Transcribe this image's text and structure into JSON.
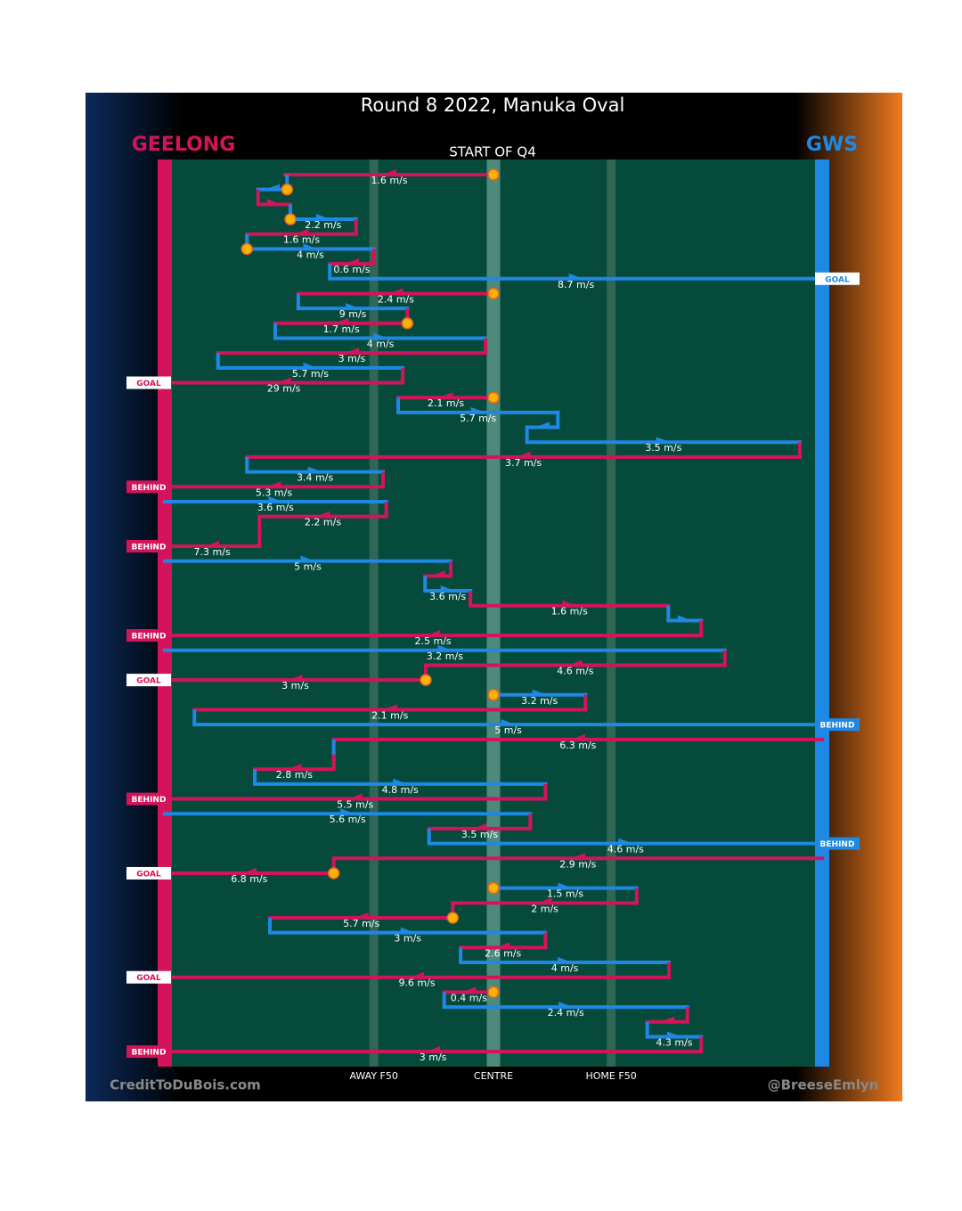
{
  "title": "Round 8 2022, Manuka Oval",
  "subtitle": "START OF Q4",
  "teams": [
    {
      "name": "GEELONG",
      "color": "#d4145a"
    },
    {
      "name": "GWS",
      "color": "#1e88e5"
    }
  ],
  "field_marks": [
    {
      "label": "AWAY F50",
      "at": 31.8
    },
    {
      "label": "CENTRE",
      "at": 50
    },
    {
      "label": "HOME F50",
      "at": 67.9
    }
  ],
  "credits": [
    "CreditToDuBois.com",
    "@BreeseEmlyn"
  ],
  "rows": [
    {
      "team": "GEELONG",
      "from": 50,
      "to": 18.3,
      "speed": "1.6 m/s",
      "dot": true
    },
    {
      "team": "GWS",
      "from": 18.6,
      "to": 14.2,
      "dot": true
    },
    {
      "team": "GEELONG",
      "from": 14.2,
      "to": 19.1
    },
    {
      "team": "GWS",
      "from": 19.1,
      "to": 29.1,
      "speed": "2.2 m/s",
      "dot": true
    },
    {
      "team": "GEELONG",
      "from": 29.1,
      "to": 12.5,
      "speed": "1.6 m/s"
    },
    {
      "team": "GWS",
      "from": 12.5,
      "to": 31.8,
      "speed": "4 m/s",
      "dot": true
    },
    {
      "team": "GEELONG",
      "from": 31.8,
      "to": 25.1,
      "speed": "0.6 m/s"
    },
    {
      "team": "GWS",
      "from": 25.1,
      "to": 100,
      "speed": "8.7 m/s",
      "result": "GOAL"
    },
    {
      "team": "GEELONG",
      "from": 50,
      "to": 20.3,
      "speed": "2.4 m/s",
      "dot": true
    },
    {
      "team": "GWS",
      "from": 20.3,
      "to": 36.9,
      "speed": "9 m/s"
    },
    {
      "team": "GEELONG",
      "from": 36.9,
      "to": 16.8,
      "speed": "1.7 m/s",
      "dot": true
    },
    {
      "team": "GWS",
      "from": 16.8,
      "to": 48.8,
      "speed": "4 m/s"
    },
    {
      "team": "GEELONG",
      "from": 48.8,
      "to": 8.1,
      "speed": "3 m/s"
    },
    {
      "team": "GWS",
      "from": 8.1,
      "to": 36.2,
      "speed": "5.7 m/s"
    },
    {
      "team": "GEELONG",
      "from": 36.2,
      "to": 0,
      "speed": "29 m/s",
      "result": "GOAL"
    },
    {
      "team": "GEELONG",
      "from": 50,
      "to": 35.5,
      "speed": "2.1 m/s",
      "dot": true
    },
    {
      "team": "GWS",
      "from": 35.5,
      "to": 59.8,
      "speed": "5.7 m/s"
    },
    {
      "team": "GWS",
      "from": 59.8,
      "to": 55.1
    },
    {
      "team": "GWS",
      "from": 55.1,
      "to": 96.6,
      "speed": "3.5 m/s"
    },
    {
      "team": "GEELONG",
      "from": 96.6,
      "to": 12.5,
      "speed": "3.7 m/s"
    },
    {
      "team": "GWS",
      "from": 12.5,
      "to": 33.2,
      "speed": "3.4 m/s"
    },
    {
      "team": "GEELONG",
      "from": 33.2,
      "to": 0,
      "speed": "5.3 m/s",
      "result": "BEHIND"
    },
    {
      "team": "GWS",
      "from": 0,
      "to": 33.7,
      "speed": "3.6 m/s"
    },
    {
      "team": "GEELONG",
      "from": 33.7,
      "to": 14.4,
      "speed": "2.2 m/s"
    },
    {
      "team": "GEELONG",
      "from": 14.4,
      "to": 14.4
    },
    {
      "team": "GEELONG",
      "from": 14.4,
      "to": 0,
      "speed": "7.3 m/s",
      "result": "BEHIND"
    },
    {
      "team": "GWS",
      "from": 0,
      "to": 43.5,
      "speed": "5 m/s"
    },
    {
      "team": "GEELONG",
      "from": 43.5,
      "to": 39.6
    },
    {
      "team": "GWS",
      "from": 39.6,
      "to": 46.5,
      "speed": "3.6 m/s"
    },
    {
      "team": "GEELONG",
      "from": 46.5,
      "to": 76.6,
      "speed": "1.6 m/s"
    },
    {
      "team": "GWS",
      "from": 76.6,
      "to": 81.6
    },
    {
      "team": "GEELONG",
      "from": 81.6,
      "to": 0,
      "speed": "2.5 m/s",
      "result": "BEHIND"
    },
    {
      "team": "GWS",
      "from": 0,
      "to": 85.2,
      "speed": "3.2 m/s"
    },
    {
      "team": "GEELONG",
      "from": 85.2,
      "to": 39.7,
      "speed": "4.6 m/s"
    },
    {
      "team": "GEELONG",
      "from": 39.7,
      "to": 0,
      "speed": "3 m/s",
      "result": "GOAL",
      "dot": true
    },
    {
      "team": "GWS",
      "from": 50,
      "to": 64.0,
      "speed": "3.2 m/s",
      "dot": true
    },
    {
      "team": "GEELONG",
      "from": 64.0,
      "to": 4.5,
      "speed": "2.1 m/s"
    },
    {
      "team": "GWS",
      "from": 4.5,
      "to": 100,
      "speed": "5 m/s",
      "result": "BEHIND"
    },
    {
      "team": "GEELONG",
      "from": 100,
      "to": 25.7,
      "speed": "6.3 m/s"
    },
    {
      "team": "GWS",
      "from": 25.7,
      "to": 25.7
    },
    {
      "team": "GEELONG",
      "from": 25.7,
      "to": 13.7,
      "speed": "2.8 m/s"
    },
    {
      "team": "GWS",
      "from": 13.7,
      "to": 57.9,
      "speed": "4.8 m/s"
    },
    {
      "team": "GEELONG",
      "from": 57.9,
      "to": 0,
      "speed": "5.5 m/s",
      "result": "BEHIND"
    },
    {
      "team": "GWS",
      "from": 0,
      "to": 55.6,
      "speed": "5.6 m/s"
    },
    {
      "team": "GEELONG",
      "from": 55.6,
      "to": 40.2,
      "speed": "3.5 m/s"
    },
    {
      "team": "GWS",
      "from": 40.2,
      "to": 100,
      "speed": "4.6 m/s",
      "result": "BEHIND"
    },
    {
      "team": "GEELONG",
      "from": 100,
      "to": 25.7,
      "speed": "2.9 m/s"
    },
    {
      "team": "GEELONG",
      "from": 25.7,
      "to": 0,
      "speed": "6.8 m/s",
      "result": "GOAL",
      "dot": true
    },
    {
      "team": "GWS",
      "from": 50,
      "to": 71.8,
      "speed": "1.5 m/s",
      "dot": true
    },
    {
      "team": "GEELONG",
      "from": 71.8,
      "to": 43.8,
      "speed": "2 m/s"
    },
    {
      "team": "GEELONG",
      "from": 43.8,
      "to": 16.0,
      "speed": "5.7 m/s",
      "dot": true
    },
    {
      "team": "GWS",
      "from": 16.0,
      "to": 57.9,
      "speed": "3 m/s"
    },
    {
      "team": "GEELONG",
      "from": 57.9,
      "to": 45.0,
      "speed": "2.6 m/s"
    },
    {
      "team": "GWS",
      "from": 45.0,
      "to": 76.7,
      "speed": "4 m/s"
    },
    {
      "team": "GEELONG",
      "from": 76.7,
      "to": 0,
      "speed": "9.6 m/s",
      "result": "GOAL"
    },
    {
      "team": "GEELONG",
      "from": 50,
      "to": 42.5,
      "speed": "0.4 m/s",
      "dot": true
    },
    {
      "team": "GWS",
      "from": 42.5,
      "to": 79.5,
      "speed": "2.4 m/s"
    },
    {
      "team": "GEELONG",
      "from": 79.5,
      "to": 73.4
    },
    {
      "team": "GWS",
      "from": 73.4,
      "to": 81.6,
      "speed": "4.3 m/s"
    },
    {
      "team": "GEELONG",
      "from": 81.6,
      "to": 0,
      "speed": "3 m/s",
      "result": "BEHIND"
    }
  ]
}
